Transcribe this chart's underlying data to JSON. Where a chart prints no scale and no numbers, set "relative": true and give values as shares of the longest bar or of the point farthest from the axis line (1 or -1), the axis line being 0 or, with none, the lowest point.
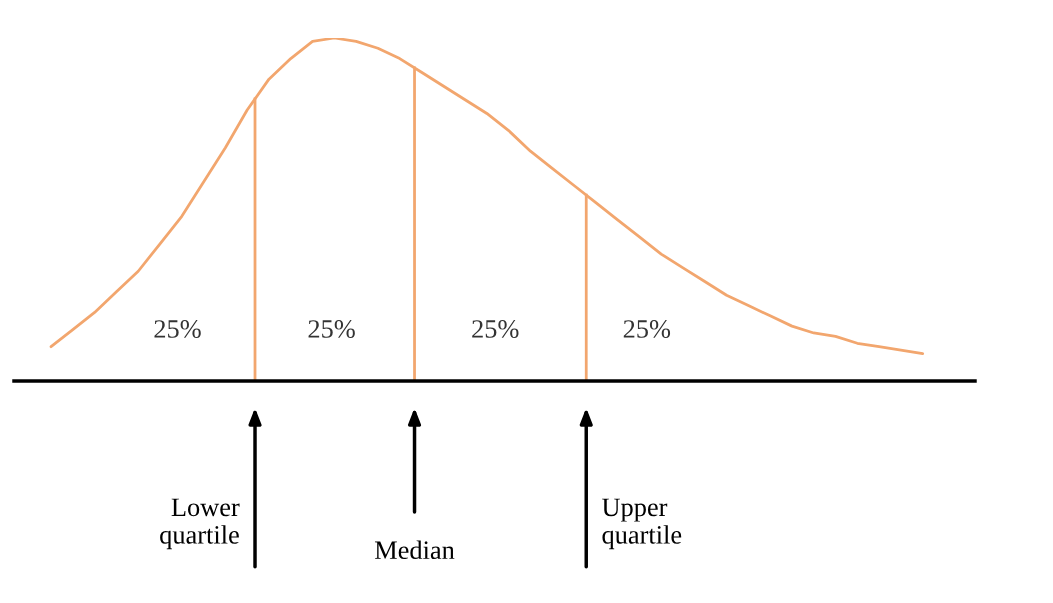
{
  "chart_data": {
    "type": "line",
    "relative": true,
    "color": "#f2a66e",
    "categories": [
      null,
      null,
      null,
      null,
      null,
      null,
      null,
      null,
      null,
      null,
      null,
      null,
      null,
      null,
      null,
      null,
      null,
      null,
      null,
      null,
      null,
      null,
      null,
      null,
      null,
      null,
      null,
      null,
      null,
      null,
      null,
      null,
      null,
      null,
      null,
      null,
      null,
      null,
      null,
      null,
      null
    ],
    "values": [
      0.1,
      0.15,
      0.2,
      0.26,
      0.32,
      0.4,
      0.48,
      0.58,
      0.68,
      0.79,
      0.88,
      0.94,
      0.99,
      1.0,
      0.99,
      0.97,
      0.94,
      0.9,
      0.86,
      0.82,
      0.78,
      0.73,
      0.67,
      0.62,
      0.57,
      0.52,
      0.47,
      0.42,
      0.37,
      0.33,
      0.29,
      0.25,
      0.22,
      0.19,
      0.16,
      0.14,
      0.13,
      0.11,
      0.1,
      0.09,
      0.08
    ],
    "annotations": [
      "25%",
      "25%",
      "25%",
      "25%",
      "Lower\nquartile",
      "Median",
      "Upper\nquartile"
    ],
    "grid": false,
    "legend": false
  }
}
